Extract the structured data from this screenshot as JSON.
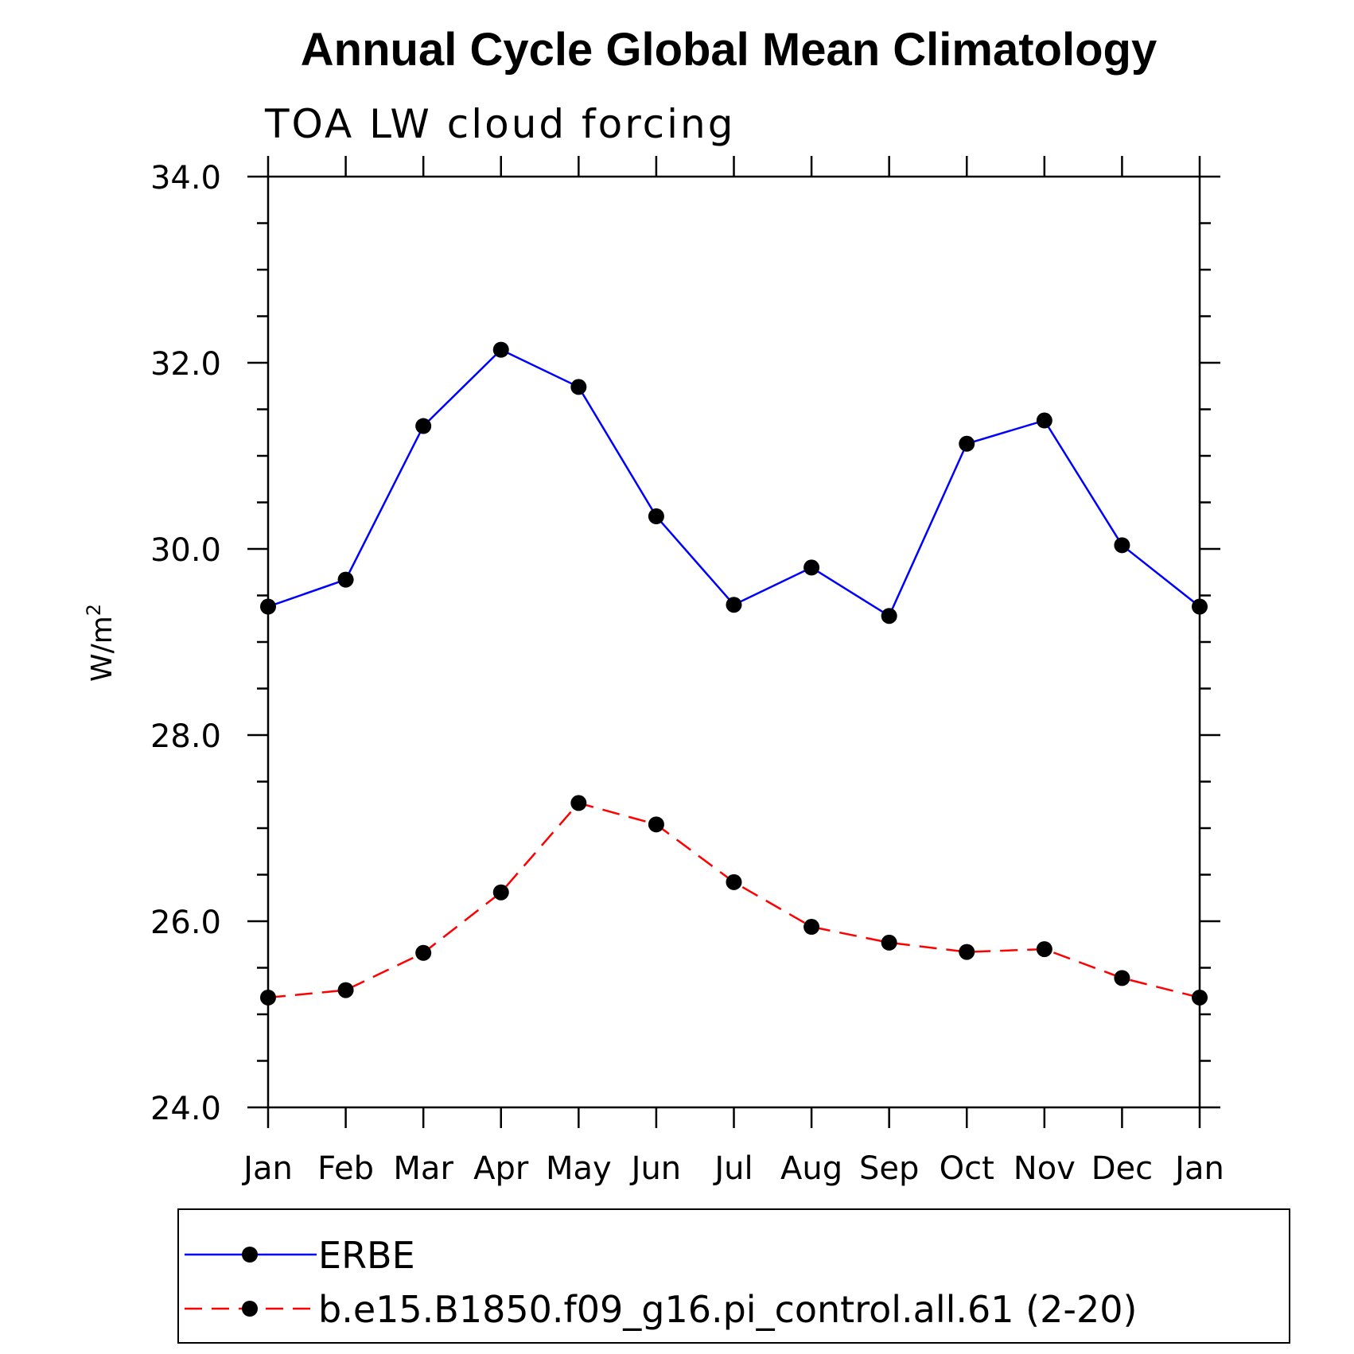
{
  "chart_data": {
    "type": "line",
    "title": "Annual Cycle Global Mean Climatology",
    "subtitle": "TOA LW cloud forcing",
    "ylabel": "W/m",
    "ylabel_superscript": "2",
    "categories": [
      "Jan",
      "Feb",
      "Mar",
      "Apr",
      "May",
      "Jun",
      "Jul",
      "Aug",
      "Sep",
      "Oct",
      "Nov",
      "Dec",
      "Jan"
    ],
    "ylim": [
      24.0,
      34.0
    ],
    "yticks": [
      "24.0",
      "26.0",
      "28.0",
      "30.0",
      "32.0",
      "34.0"
    ],
    "series": [
      {
        "name": "ERBE",
        "color": "#0000ff",
        "dash": "solid",
        "values": [
          29.38,
          29.67,
          31.32,
          32.14,
          31.74,
          30.35,
          29.4,
          29.8,
          29.28,
          31.13,
          31.38,
          30.04,
          29.38
        ]
      },
      {
        "name": "b.e15.B1850.f09_g16.pi_control.all.61 (2-20)",
        "color": "#ff0000",
        "dash": "dashed",
        "values": [
          25.18,
          25.26,
          25.66,
          26.31,
          27.27,
          27.04,
          26.42,
          25.94,
          25.77,
          25.67,
          25.7,
          25.39,
          25.18
        ]
      }
    ],
    "legend_position": "bottom"
  }
}
